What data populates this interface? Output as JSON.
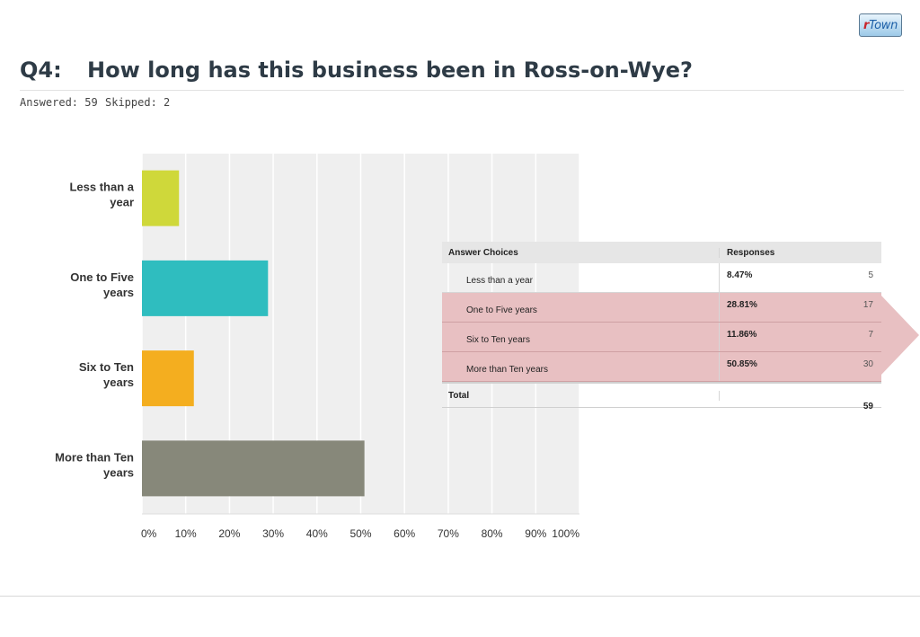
{
  "header": {
    "logo_r": "r",
    "logo_text": "Town",
    "question_label": "Q4:",
    "question_title": "How long has this business been in Ross-on-Wye?",
    "answered": "Answered: 59",
    "skipped": "Skipped: 2"
  },
  "chart_data": {
    "type": "bar",
    "orientation": "horizontal",
    "title": "",
    "categories": [
      "Less than a year",
      "One to Five years",
      "Six to Ten years",
      "More than Ten years"
    ],
    "category_label_lines": [
      [
        "Less than a",
        "year"
      ],
      [
        "One to Five",
        "years"
      ],
      [
        "Six to Ten",
        "years"
      ],
      [
        "More than Ten",
        "years"
      ]
    ],
    "values": [
      8.47,
      28.81,
      11.86,
      50.85
    ],
    "colors": [
      "#cfd83a",
      "#2fbdbf",
      "#f4ae1f",
      "#87887a"
    ],
    "xlim": [
      0,
      100
    ],
    "x_ticks": [
      "0%",
      "10%",
      "20%",
      "30%",
      "40%",
      "50%",
      "60%",
      "70%",
      "80%",
      "90%",
      "100%"
    ],
    "grid": true,
    "plot_background": "#efefef"
  },
  "table": {
    "headers": [
      "Answer Choices",
      "Responses"
    ],
    "rows": [
      {
        "label": "Less than a year",
        "percent": "8.47%",
        "count": "5",
        "highlight": false
      },
      {
        "label": "One to Five years",
        "percent": "28.81%",
        "count": "17",
        "highlight": true
      },
      {
        "label": "Six to Ten years",
        "percent": "11.86%",
        "count": "7",
        "highlight": true
      },
      {
        "label": "More than Ten years",
        "percent": "50.85%",
        "count": "30",
        "highlight": true
      }
    ],
    "total_label": "Total",
    "total_count": "59",
    "highlight_color": "#e8c0c2"
  }
}
